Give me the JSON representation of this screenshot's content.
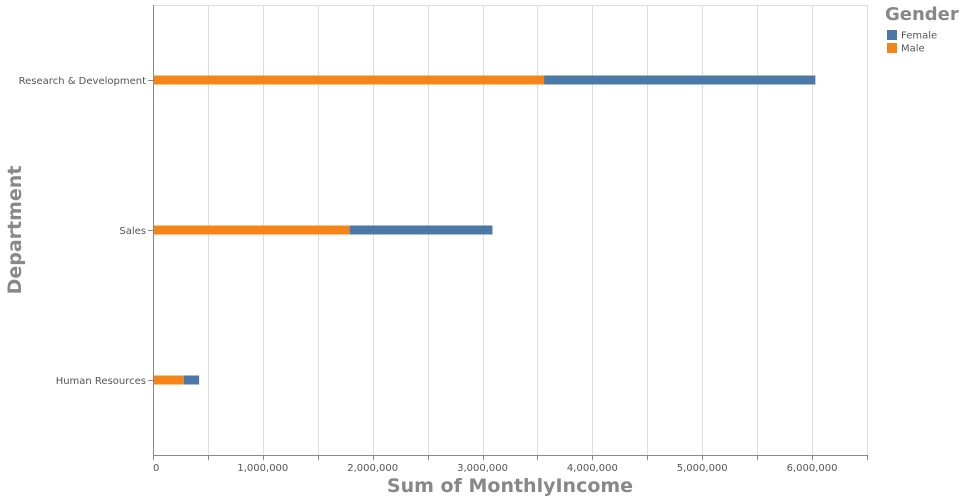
{
  "chart_data": {
    "type": "bar",
    "orientation": "horizontal",
    "stacked": true,
    "categories": [
      "Research & Development",
      "Sales",
      "Human Resources"
    ],
    "series": [
      {
        "name": "Male",
        "values": [
          3560000,
          1790000,
          280000
        ],
        "color": "#f58518"
      },
      {
        "name": "Female",
        "values": [
          2470000,
          1300000,
          140000
        ],
        "color": "#4c78a8"
      }
    ],
    "xlabel": "Sum of MonthlyIncome",
    "ylabel": "Department",
    "xlim": [
      0,
      6500000
    ],
    "x_ticks": [
      0,
      1000000,
      2000000,
      3000000,
      4000000,
      5000000,
      6000000
    ],
    "x_tick_labels": [
      "0",
      "1,000,000",
      "2,000,000",
      "3,000,000",
      "4,000,000",
      "5,000,000",
      "6,000,000"
    ],
    "grid": true,
    "legend": {
      "title": "Gender",
      "position": "top-right",
      "entries": [
        {
          "label": "Female",
          "color": "#4c78a8"
        },
        {
          "label": "Male",
          "color": "#f58518"
        }
      ]
    }
  }
}
